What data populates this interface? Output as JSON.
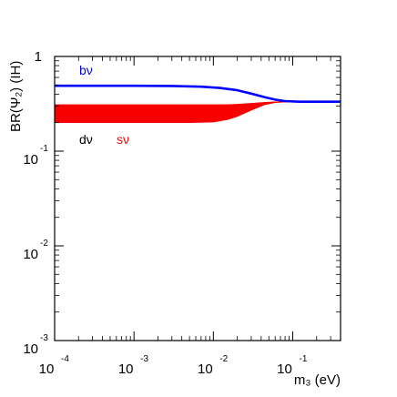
{
  "chart_data": {
    "type": "line",
    "xlabel": "m₃ (eV)",
    "ylabel": "BR(Ψ₂) (IH)",
    "x_scale": "log",
    "y_scale": "log",
    "xlim": [
      0.0001,
      0.4
    ],
    "ylim": [
      0.001,
      1
    ],
    "grid": false,
    "x_ticks": [
      {
        "base": "10",
        "exp": "-4"
      },
      {
        "base": "10",
        "exp": "-3"
      },
      {
        "base": "10",
        "exp": "-2"
      },
      {
        "base": "10",
        "exp": "-1"
      }
    ],
    "y_ticks": [
      {
        "base": "1",
        "exp": ""
      },
      {
        "base": "10",
        "exp": "-1"
      },
      {
        "base": "10",
        "exp": "-2"
      },
      {
        "base": "10",
        "exp": "-3"
      }
    ],
    "series": [
      {
        "name": "bν",
        "color": "#0000ff",
        "x": [
          0.0001,
          0.001,
          0.003,
          0.007,
          0.012,
          0.02,
          0.03,
          0.045,
          0.06,
          0.08,
          0.12,
          0.2,
          0.4
        ],
        "y": [
          0.49,
          0.49,
          0.488,
          0.48,
          0.465,
          0.44,
          0.405,
          0.37,
          0.35,
          0.338,
          0.333,
          0.333,
          0.333
        ]
      },
      {
        "name": "dν / sν band",
        "color": "#ff0000",
        "x": [
          0.0001,
          0.001,
          0.005,
          0.01,
          0.015,
          0.02,
          0.03,
          0.045,
          0.06,
          0.08,
          0.12,
          0.2,
          0.4
        ],
        "y_low": [
          0.2,
          0.2,
          0.2,
          0.203,
          0.215,
          0.232,
          0.27,
          0.31,
          0.325,
          0.33,
          0.333,
          0.333,
          0.333
        ],
        "y_high": [
          0.31,
          0.31,
          0.31,
          0.31,
          0.31,
          0.313,
          0.32,
          0.328,
          0.332,
          0.333,
          0.334,
          0.334,
          0.334
        ]
      }
    ],
    "annotations": [
      {
        "text": "bν",
        "color": "#0000ff"
      },
      {
        "text": "dν",
        "color": "#000000"
      },
      {
        "text": "sν",
        "color": "#ff0000"
      }
    ]
  }
}
